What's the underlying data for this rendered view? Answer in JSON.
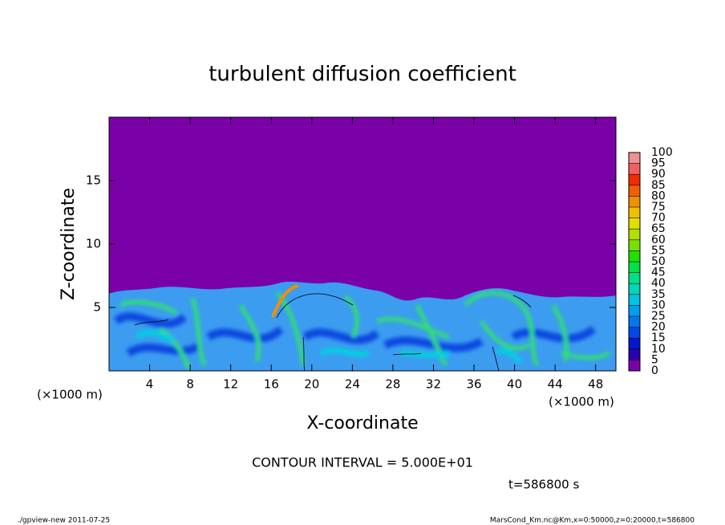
{
  "chart_data": {
    "type": "contour",
    "title": "turbulent diffusion coefficient",
    "x_label": "X-coordinate",
    "y_label": "Z-coordinate",
    "x_unit": "(×1000 m)",
    "y_unit": "(×1000 m)",
    "xlim": [
      0,
      50
    ],
    "ylim": [
      0,
      20
    ],
    "xticks": [
      4,
      8,
      12,
      16,
      20,
      24,
      28,
      32,
      36,
      40,
      44,
      48
    ],
    "yticks": [
      5,
      10,
      15
    ],
    "colorbar": {
      "levels": [
        0,
        5,
        10,
        15,
        20,
        25,
        30,
        35,
        40,
        45,
        50,
        55,
        60,
        65,
        70,
        75,
        80,
        85,
        90,
        95,
        100
      ],
      "colors": [
        "#7a00a8",
        "#2a00b0",
        "#0018d0",
        "#0048e8",
        "#0078f0",
        "#00a0f0",
        "#00c4e4",
        "#00d8b8",
        "#00e088",
        "#00e048",
        "#20e000",
        "#78e000",
        "#b0e000",
        "#e0e000",
        "#f0c000",
        "#f09000",
        "#f06000",
        "#f02c00",
        "#f06060",
        "#f09090"
      ]
    },
    "annotation": "CONTOUR INTERVAL = 5.000E+01",
    "time_label": "t=586800 s",
    "footer_left": "./gpview-new  2011-07-25",
    "footer_right": "MarsCond_Km.nc@Km,x=0:50000,z=0:20000,t=586800"
  }
}
